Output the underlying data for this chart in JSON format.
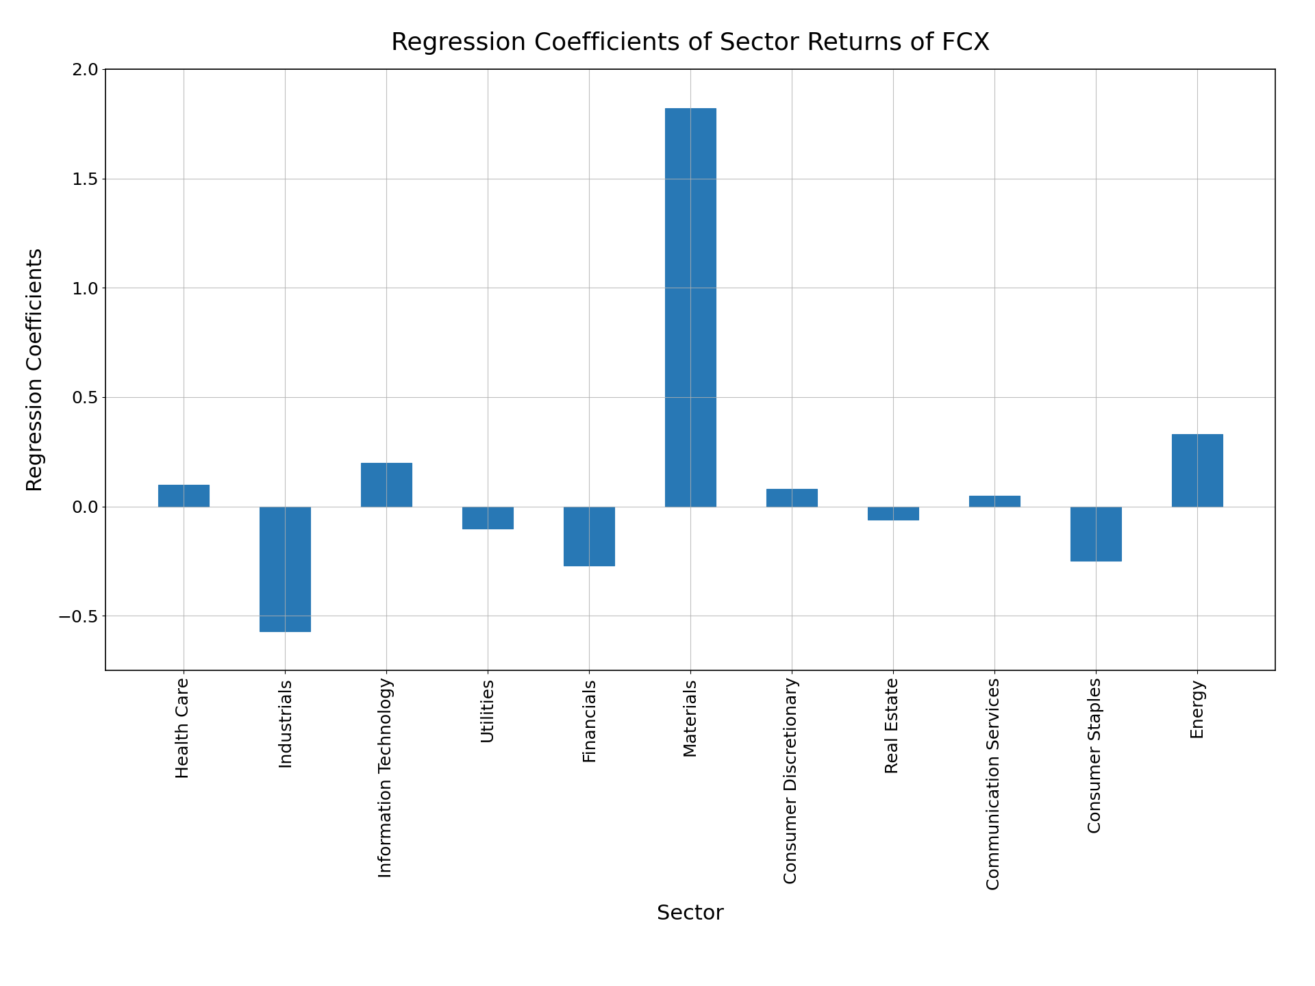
{
  "categories": [
    "Health Care",
    "Industrials",
    "Information Technology",
    "Utilities",
    "Financials",
    "Materials",
    "Consumer Discretionary",
    "Real Estate",
    "Communication Services",
    "Consumer Staples",
    "Energy"
  ],
  "values": [
    0.1,
    -0.57,
    0.2,
    -0.1,
    -0.27,
    1.82,
    0.08,
    -0.06,
    0.05,
    -0.25,
    0.33
  ],
  "bar_color": "#2878b5",
  "bar_edge_color": "#2878b5",
  "title": "Regression Coefficients of Sector Returns of FCX",
  "xlabel": "Sector",
  "ylabel": "Regression Coefficients",
  "title_fontsize": 26,
  "label_fontsize": 22,
  "tick_fontsize": 18,
  "ylim": [
    -0.75,
    2.0
  ],
  "grid": true,
  "background_color": "#ffffff",
  "bar_width": 0.5
}
